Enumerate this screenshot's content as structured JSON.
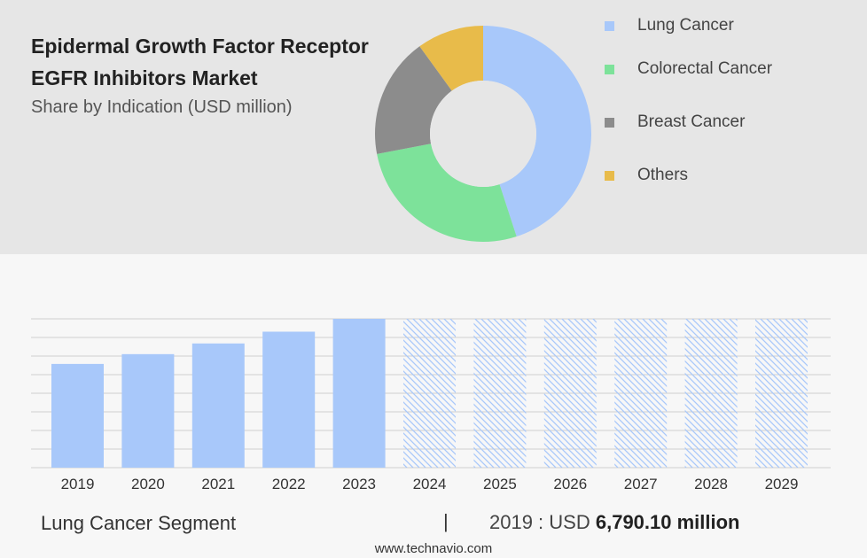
{
  "header": {
    "title": "Epidermal Growth Factor Receptor EGFR Inhibitors Market",
    "subtitle": "Share by Indication (USD million)"
  },
  "legend": [
    {
      "label": "Lung Cancer",
      "color": "#a8c8fa"
    },
    {
      "label": "Colorectal Cancer",
      "color": "#7de29a"
    },
    {
      "label": "Breast Cancer",
      "color": "#8c8c8c"
    },
    {
      "label": "Others",
      "color": "#e8bb4a"
    }
  ],
  "footer": {
    "segment": "Lung Cancer Segment",
    "separator": "|",
    "value_prefix": "2019 : USD",
    "value": "6,790.10 million",
    "website": "www.technavio.com"
  },
  "chart_data": [
    {
      "type": "pie",
      "donut": true,
      "title": "",
      "categories": [
        "Lung Cancer",
        "Colorectal Cancer",
        "Breast Cancer",
        "Others"
      ],
      "values": [
        45,
        27,
        18,
        10
      ],
      "colors": [
        "#a8c8fa",
        "#7de29a",
        "#8c8c8c",
        "#e8bb4a"
      ]
    },
    {
      "type": "bar",
      "title": "",
      "categories": [
        "2019",
        "2020",
        "2021",
        "2022",
        "2023",
        "2024",
        "2025",
        "2026",
        "2027",
        "2028",
        "2029"
      ],
      "values": [
        6790.1,
        7430,
        8130,
        8900,
        9740,
        null,
        null,
        null,
        null,
        null,
        null
      ],
      "forecast_categories": [
        "2024",
        "2025",
        "2026",
        "2027",
        "2028",
        "2029"
      ],
      "ylim": [
        0,
        9740
      ],
      "grid": true,
      "color": "#a8c8fa"
    }
  ]
}
